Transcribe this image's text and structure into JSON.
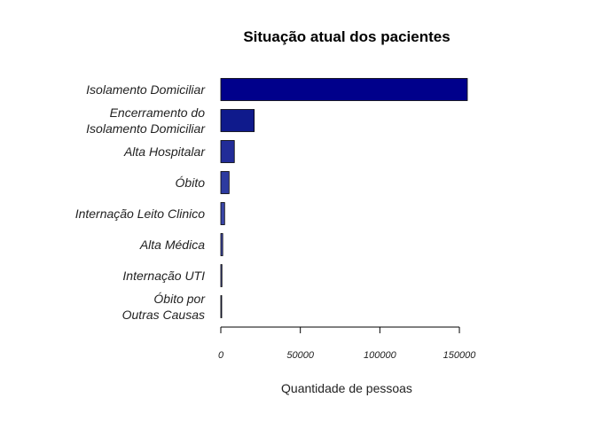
{
  "chart_data": {
    "type": "bar",
    "orientation": "horizontal",
    "title": "Situação atual dos pacientes",
    "xlabel": "Quantidade de pessoas",
    "ylabel": "",
    "categories": [
      [
        "Isolamento Domiciliar"
      ],
      [
        "Encerramento do",
        "Isolamento Domiciliar"
      ],
      [
        "Alta Hospitalar"
      ],
      [
        "Óbito"
      ],
      [
        "Internação Leito Clinico"
      ],
      [
        "Alta Médica"
      ],
      [
        "Internação UTI"
      ],
      [
        "Óbito por",
        "Outras Causas"
      ]
    ],
    "values": [
      155000,
      21000,
      8500,
      5200,
      2400,
      1200,
      700,
      150
    ],
    "colors": [
      "#00008B",
      "#0F1A8C",
      "#222C98",
      "#2D3BA0",
      "#3A46A8",
      "#444DAF",
      "#4B55B8",
      "#5560C0"
    ],
    "xlim": [
      0,
      155000
    ],
    "xticks": [
      0,
      50000,
      100000,
      150000
    ],
    "xtick_labels": [
      "0",
      "50000",
      "100000",
      "150000"
    ],
    "grid": false,
    "legend": "none"
  }
}
